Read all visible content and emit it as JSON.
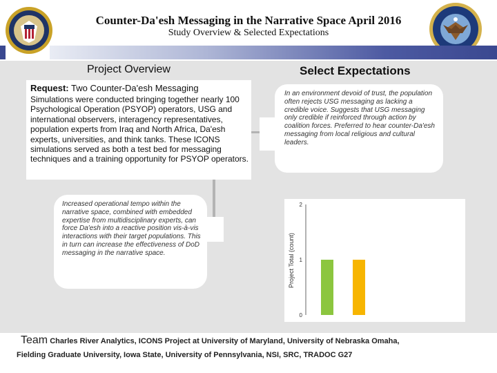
{
  "header": {
    "title": "Counter-Da'esh Messaging in the Narrative Space April 2016",
    "subtitle": "Study Overview & Selected Expectations"
  },
  "overview": {
    "heading": "Project Overview",
    "request_label": "Request:",
    "request_text": "Two Counter-Da'esh Messaging",
    "body": "Simulations were conducted bringing together nearly 100 Psychological Operation (PSYOP) operators, USG and international observers, interagency representatives, population experts from Iraq and North Africa, Da'esh experts, universities, and think tanks. These ICONS simulations served as both a test bed for messaging techniques and a training opportunity for PSYOP operators."
  },
  "expectations": {
    "heading": "Select Expectations",
    "trust_text": "In an environment devoid of trust, the population often rejects USG messaging as lacking a credible voice. Suggests that USG messaging only credible if reinforced through action by coalition forces. Preferred to hear counter-Da'esh messaging from local religious and cultural leaders.",
    "tempo_text": "Increased operational tempo within the narrative space, combined with embedded expertise from multidisciplinary experts, can force Da'esh into a reactive position vis-à-vis interactions with their target populations. This in turn can increase the effectiveness of DoD messaging in the narrative space."
  },
  "chart_data": {
    "type": "bar",
    "categories": [
      "",
      ""
    ],
    "values": [
      1,
      1
    ],
    "colors": [
      "#8cc63f",
      "#f7b500"
    ],
    "ylabel": "Project Total (count)",
    "ylim": [
      0,
      2
    ],
    "yticks": [
      "0",
      "1",
      "2"
    ],
    "grid": false
  },
  "footer": {
    "team_label": "Team",
    "line1": "Charles River Analytics, ICONS Project at University of Maryland, University of Nebraska Omaha,",
    "line2": "Fielding Graduate University, Iowa State, University of Pennsylvania, NSI, SRC, TRADOC G27"
  }
}
